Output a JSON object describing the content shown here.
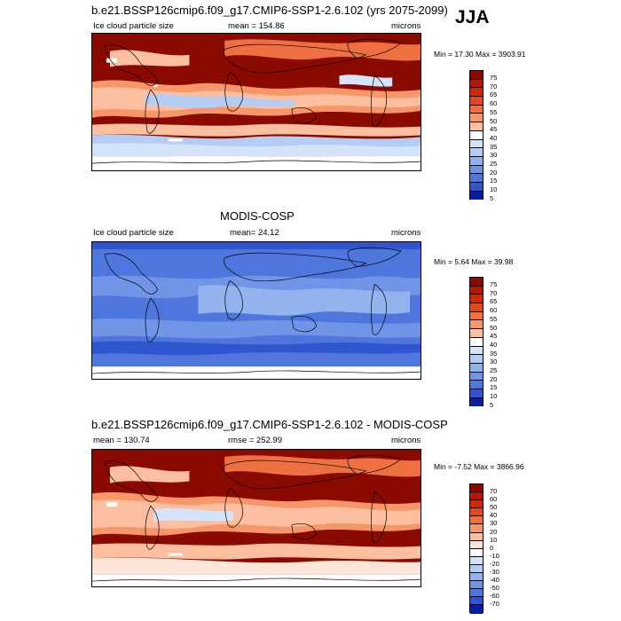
{
  "season": "JJA",
  "panels": [
    {
      "title": "b.e21.BSSP126cmip6.f09_g17.CMIP6-SSP1-2.6.102 (yrs 2075-2099)",
      "left": "Ice cloud particle size",
      "center": "mean = 154.86",
      "units": "microns",
      "minmax": "Min = 17.30 Max = 3903.91",
      "colorbar": [
        "75",
        "70",
        "65",
        "60",
        "55",
        "50",
        "45",
        "40",
        "35",
        "30",
        "25",
        "20",
        "15",
        "10",
        "5"
      ]
    },
    {
      "title": "MODIS-COSP",
      "left": "Ice cloud particle size",
      "center": "mean= 24.12",
      "units": "microns",
      "minmax": "Min = 5.64 Max = 39.98",
      "colorbar": [
        "75",
        "70",
        "65",
        "60",
        "55",
        "50",
        "45",
        "40",
        "35",
        "30",
        "25",
        "20",
        "15",
        "10",
        "5"
      ]
    },
    {
      "title": "b.e21.BSSP126cmip6.f09_g17.CMIP6-SSP1-2.6.102 - MODIS-COSP",
      "left": "mean = 130.74",
      "center": "rmse = 252.99",
      "units": "microns",
      "minmax": "Min = -7.52 Max = 3866.96",
      "colorbar": [
        "70",
        "60",
        "50",
        "40",
        "30",
        "20",
        "10",
        "0",
        "-10",
        "-20",
        "-30",
        "-40",
        "-50",
        "-60",
        "-70"
      ]
    }
  ],
  "colors": {
    "abs_scale": [
      "#8b0a00",
      "#b11a00",
      "#cc2a08",
      "#e04a20",
      "#ee7040",
      "#f79668",
      "#fcc0a0",
      "#fde6d8",
      "#ffffff",
      "#d6e4fb",
      "#b4cdf5",
      "#93b3ee",
      "#7195e6",
      "#4f76dd",
      "#2f56cf",
      "#0a1fa0"
    ],
    "diff_scale": [
      "#8b0a00",
      "#b11a00",
      "#cc2a08",
      "#e04a20",
      "#ee7040",
      "#f79668",
      "#fcc0a0",
      "#fde6d8",
      "#ffffff",
      "#d6e4fb",
      "#b4cdf5",
      "#93b3ee",
      "#7195e6",
      "#4f76dd",
      "#2f56cf",
      "#0a1fa0"
    ]
  }
}
